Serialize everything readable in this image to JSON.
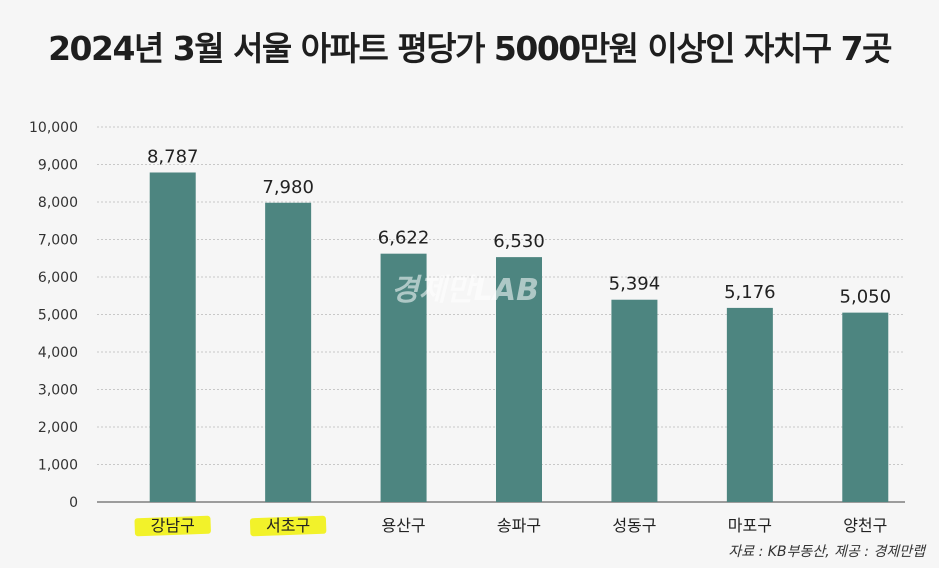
{
  "chart_data": {
    "type": "bar",
    "title": "2024년 3월 서울 아파트 평당가 5000만원 이상인 자치구 7곳",
    "categories": [
      "강남구",
      "서초구",
      "용산구",
      "송파구",
      "성동구",
      "마포구",
      "양천구"
    ],
    "values": [
      8787,
      7980,
      6622,
      6530,
      5394,
      5176,
      5050
    ],
    "data_labels": [
      "8,787",
      "7,980",
      "6,622",
      "6,530",
      "5,394",
      "5,176",
      "5,050"
    ],
    "yticks": [
      "0",
      "1,000",
      "2,000",
      "3,000",
      "4,000",
      "5,000",
      "6,000",
      "7,000",
      "8,000",
      "9,000",
      "10,000"
    ],
    "ylim": [
      0,
      10000
    ],
    "grid": true,
    "xlabel": "",
    "ylabel": "",
    "highlighted_categories": [
      "강남구",
      "서초구"
    ],
    "colors": {
      "bar": "#4d8580",
      "highlight": "#f2f22a",
      "grid": "#c8c8c8",
      "axis": "#666666"
    }
  },
  "watermark": "경제만LAB",
  "source": "자료 : KB부동산, 제공 : 경제만랩"
}
